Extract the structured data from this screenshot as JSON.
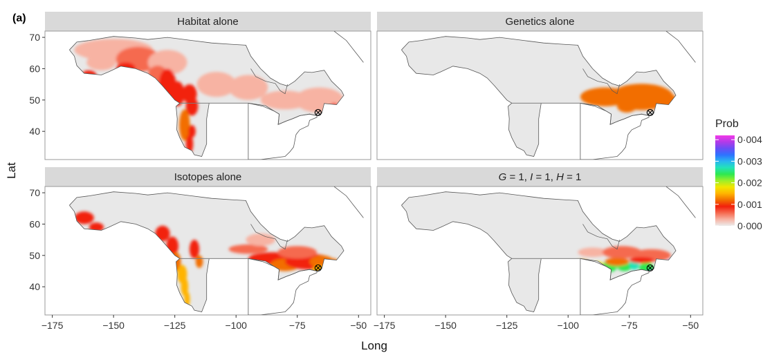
{
  "panel_tag": "(a)",
  "chart_data": {
    "type": "heatmap",
    "description_kind": "faceted probability maps",
    "xlabel": "Long",
    "ylabel": "Lat",
    "xlim": [
      -178,
      -45
    ],
    "ylim": [
      31,
      72
    ],
    "x_ticks": [
      -175,
      -150,
      -125,
      -100,
      -75,
      -50
    ],
    "x_tick_labels": [
      "−175",
      "−150",
      "−125",
      "−100",
      "−75",
      "−50"
    ],
    "y_ticks": [
      40,
      50,
      60,
      70
    ],
    "y_tick_labels": [
      "40",
      "50",
      "60",
      "70"
    ],
    "sample_location": {
      "lon": -66.5,
      "lat": 46
    },
    "panels": [
      {
        "title": "Habitat alone",
        "title_parts": [
          {
            "t": "Habitat alone"
          }
        ]
      },
      {
        "title": "Genetics alone",
        "title_parts": [
          {
            "t": "Genetics alone"
          }
        ]
      },
      {
        "title": "Isotopes alone",
        "title_parts": [
          {
            "t": "Isotopes alone"
          }
        ]
      },
      {
        "title": "G = 1, I = 1, H = 1",
        "title_parts": [
          {
            "t": "G",
            "i": true
          },
          {
            "t": " = 1, "
          },
          {
            "t": "I",
            "i": true
          },
          {
            "t": " = 1, "
          },
          {
            "t": "H",
            "i": true
          },
          {
            "t": " = 1"
          }
        ]
      }
    ],
    "legend": {
      "title": "Prob",
      "range": [
        0,
        0.0042
      ],
      "tick_values": [
        0.004,
        0.003,
        0.002,
        0.001,
        0.0
      ],
      "tick_labels": [
        "0·004",
        "0·003",
        "0·002",
        "0·001",
        "0·000"
      ],
      "colors": [
        "#ececec",
        "#f7b3a3",
        "#f56a50",
        "#f2200c",
        "#f26e00",
        "#ffb400",
        "#f2e600",
        "#9bef2a",
        "#2ee850",
        "#23e3b8",
        "#29b5f0",
        "#2e72ff",
        "#6a4ef5",
        "#b43ae8",
        "#f23ae8"
      ]
    },
    "grid": false,
    "colors": {
      "strip": "#d9d9d9",
      "land_base": "#e8e8e8",
      "coast": "#555555",
      "border": "#888888"
    }
  }
}
